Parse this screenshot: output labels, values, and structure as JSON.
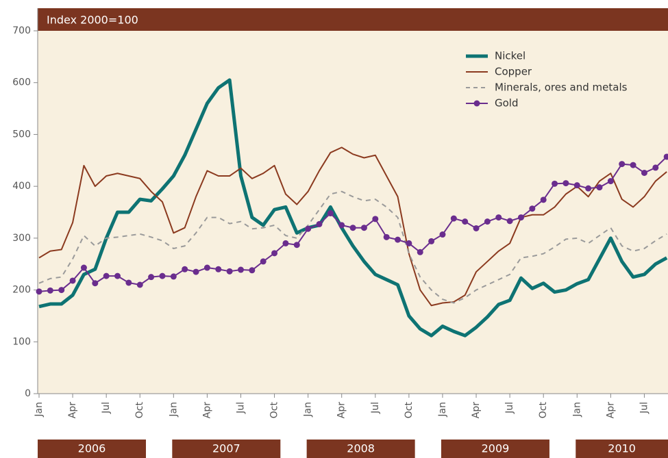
{
  "chart_data": {
    "type": "line",
    "subtitle": "Index 2000=100",
    "categories": [
      "2006-01",
      "2006-02",
      "2006-03",
      "2006-04",
      "2006-05",
      "2006-06",
      "2006-07",
      "2006-08",
      "2006-09",
      "2006-10",
      "2006-11",
      "2006-12",
      "2007-01",
      "2007-02",
      "2007-03",
      "2007-04",
      "2007-05",
      "2007-06",
      "2007-07",
      "2007-08",
      "2007-09",
      "2007-10",
      "2007-11",
      "2007-12",
      "2008-01",
      "2008-02",
      "2008-03",
      "2008-04",
      "2008-05",
      "2008-06",
      "2008-07",
      "2008-08",
      "2008-09",
      "2008-10",
      "2008-11",
      "2008-12",
      "2009-01",
      "2009-02",
      "2009-03",
      "2009-04",
      "2009-05",
      "2009-06",
      "2009-07",
      "2009-08",
      "2009-09",
      "2009-10",
      "2009-11",
      "2009-12",
      "2010-01",
      "2010-02",
      "2010-03",
      "2010-04",
      "2010-05",
      "2010-06",
      "2010-07",
      "2010-08",
      "2010-09"
    ],
    "xticks": [
      {
        "value": "2006-01",
        "label": "Jan"
      },
      {
        "value": "2006-04",
        "label": "Apr"
      },
      {
        "value": "2006-07",
        "label": "Jul"
      },
      {
        "value": "2006-10",
        "label": "Oct"
      },
      {
        "value": "2007-01",
        "label": "Jan"
      },
      {
        "value": "2007-04",
        "label": "Apr"
      },
      {
        "value": "2007-07",
        "label": "Jul"
      },
      {
        "value": "2007-10",
        "label": "Oct"
      },
      {
        "value": "2008-01",
        "label": "Jan"
      },
      {
        "value": "2008-04",
        "label": "Apr"
      },
      {
        "value": "2008-07",
        "label": "Jul"
      },
      {
        "value": "2008-10",
        "label": "Oct"
      },
      {
        "value": "2009-01",
        "label": "Jan"
      },
      {
        "value": "2009-04",
        "label": "Apr"
      },
      {
        "value": "2009-07",
        "label": "Jul"
      },
      {
        "value": "2009-10",
        "label": "Oct"
      },
      {
        "value": "2010-01",
        "label": "Jan"
      },
      {
        "value": "2010-04",
        "label": "Apr"
      },
      {
        "value": "2010-07",
        "label": "Jul"
      }
    ],
    "years": [
      "2006",
      "2007",
      "2008",
      "2009",
      "2010"
    ],
    "ylim": [
      0,
      700
    ],
    "yticks": [
      0,
      100,
      200,
      300,
      400,
      500,
      600,
      700
    ],
    "legend": "upper right",
    "series": [
      {
        "name": "Nickel",
        "color": "#0e7373",
        "style": "thick",
        "values": [
          168,
          173,
          173,
          190,
          230,
          240,
          300,
          350,
          350,
          375,
          372,
          395,
          420,
          460,
          510,
          560,
          590,
          605,
          420,
          340,
          325,
          355,
          360,
          310,
          320,
          325,
          360,
          320,
          285,
          255,
          230,
          220,
          210,
          150,
          125,
          112,
          130,
          120,
          112,
          128,
          148,
          172,
          180,
          223,
          203,
          213,
          196,
          200,
          212,
          220,
          260,
          300,
          255,
          225,
          230,
          250,
          262
        ]
      },
      {
        "name": "Copper",
        "color": "#8b3a1f",
        "style": "solid",
        "values": [
          262,
          275,
          278,
          330,
          440,
          400,
          420,
          425,
          420,
          415,
          390,
          370,
          310,
          320,
          380,
          430,
          420,
          420,
          435,
          415,
          425,
          440,
          385,
          365,
          390,
          430,
          465,
          475,
          462,
          455,
          460,
          420,
          380,
          270,
          200,
          170,
          175,
          177,
          190,
          235,
          255,
          275,
          290,
          340,
          345,
          345,
          360,
          385,
          400,
          380,
          410,
          425,
          375,
          360,
          380,
          410,
          428
        ]
      },
      {
        "name": "Minerals, ores and metals",
        "color": "#9a9a9a",
        "style": "dashed",
        "values": [
          213,
          222,
          225,
          260,
          305,
          285,
          300,
          302,
          305,
          308,
          302,
          295,
          280,
          285,
          310,
          340,
          340,
          328,
          332,
          318,
          320,
          325,
          305,
          300,
          325,
          355,
          385,
          390,
          380,
          372,
          375,
          360,
          340,
          270,
          225,
          200,
          182,
          175,
          185,
          200,
          210,
          220,
          230,
          262,
          265,
          270,
          283,
          298,
          300,
          290,
          305,
          320,
          285,
          275,
          280,
          295,
          308
        ]
      },
      {
        "name": "Gold",
        "color": "#6a2d8e",
        "style": "markers",
        "values": [
          197,
          199,
          200,
          218,
          243,
          213,
          227,
          227,
          214,
          210,
          225,
          227,
          226,
          240,
          235,
          243,
          240,
          236,
          239,
          238,
          255,
          271,
          290,
          287,
          318,
          327,
          348,
          325,
          320,
          320,
          337,
          302,
          297,
          290,
          273,
          294,
          307,
          338,
          332,
          319,
          332,
          340,
          333,
          340,
          357,
          374,
          405,
          406,
          402,
          396,
          398,
          410,
          443,
          441,
          426,
          436,
          457
        ]
      }
    ]
  }
}
